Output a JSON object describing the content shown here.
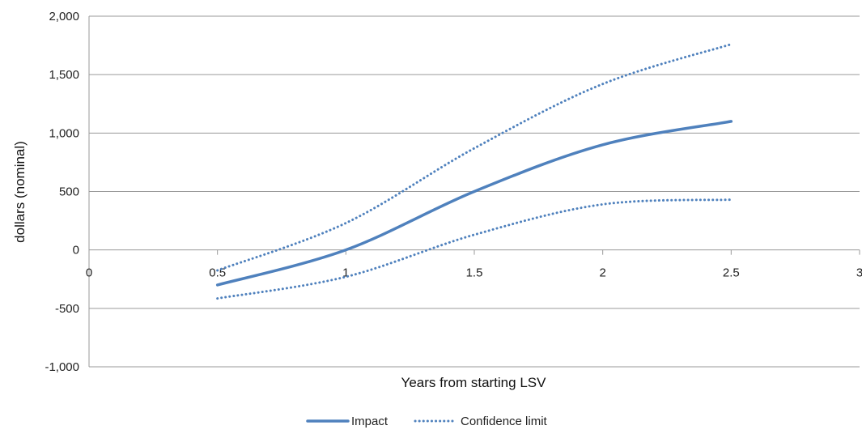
{
  "chart_data": {
    "type": "line",
    "xlabel": "Years from starting LSV",
    "ylabel": "dollars (nominal)",
    "xlim": [
      0,
      3
    ],
    "ylim": [
      -1000,
      2000
    ],
    "x_ticks": [
      0,
      0.5,
      1,
      1.5,
      2,
      2.5,
      3
    ],
    "x_tick_labels": [
      "0",
      "0.5",
      "1",
      "1.5",
      "2",
      "2.5",
      "3"
    ],
    "y_ticks": [
      -1000,
      -500,
      0,
      500,
      1000,
      1500,
      2000
    ],
    "y_tick_labels": [
      "-1,000",
      "-500",
      "0",
      "500",
      "1,000",
      "1,500",
      "2,000"
    ],
    "grid": true,
    "legend_position": "bottom-center",
    "color": "#4f81bd",
    "series": [
      {
        "name": "Impact",
        "style": "solid",
        "x": [
          0.5,
          1,
          1.5,
          2,
          2.5
        ],
        "y": [
          -300,
          0,
          500,
          900,
          1100
        ]
      },
      {
        "name": "Confidence limit",
        "style": "dotted",
        "x": [
          0.5,
          1,
          1.5,
          2,
          2.5
        ],
        "y": [
          -175,
          230,
          870,
          1420,
          1760
        ]
      },
      {
        "name": "",
        "style": "dotted",
        "x": [
          0.5,
          1,
          1.5,
          2,
          2.5
        ],
        "y": [
          -415,
          -230,
          130,
          390,
          430
        ]
      }
    ],
    "legend": [
      {
        "label": "Impact",
        "style": "solid"
      },
      {
        "label": "Confidence limit",
        "style": "dotted"
      }
    ]
  }
}
